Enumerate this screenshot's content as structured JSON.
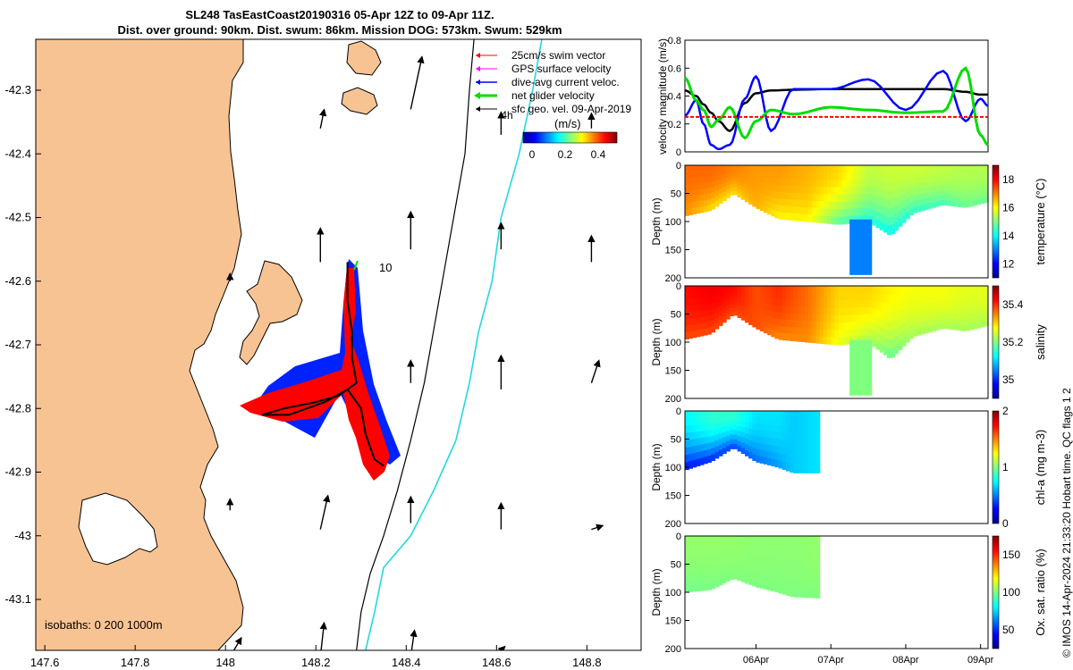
{
  "title": {
    "line1": "SL248 TasEastCoast20190316 05-Apr 12Z to 09-Apr 11Z.",
    "line2": "Dist. over ground: 90km. Dist. swum: 86km. Mission DOG: 573km. Swum: 529km"
  },
  "credit": "© IMOS 14-Apr-2024 21:33:20 Hobart time. QC flags 1  2",
  "colors": {
    "land": "#f8c393",
    "coast": "#000000",
    "swim": "#ff0000",
    "gps": "#ff00ff",
    "dive_avg": "#0000ff",
    "net_glider": "#00dd00",
    "geo_vel": "#000000",
    "isobath_200": "#000000",
    "isobath_1000": "#22d8e0"
  },
  "chart_data": [
    {
      "type": "scatter",
      "id": "map",
      "xlabel": "",
      "ylabel": "",
      "xlim": [
        147.58,
        148.92
      ],
      "ylim": [
        -43.18,
        -42.22
      ],
      "x_ticks": [
        "147.6",
        "147.8",
        "148",
        "148.2",
        "148.4",
        "148.6",
        "148.8"
      ],
      "x_tick_values": [
        147.6,
        147.8,
        148.0,
        148.2,
        148.4,
        148.6,
        148.8
      ],
      "y_ticks": [
        "-42.3",
        "-42.4",
        "-42.5",
        "-42.6",
        "-42.7",
        "-42.8",
        "-42.9",
        "-43",
        "-43.1"
      ],
      "y_tick_values": [
        -42.3,
        -42.4,
        -42.5,
        -42.6,
        -42.7,
        -42.8,
        -42.9,
        -43.0,
        -43.1
      ],
      "legend": {
        "position": "top-right",
        "entries": [
          "25cm/s swim vector",
          "GPS surface velocity",
          "dive-avg current veloc.",
          "net glider velocity",
          "sfc geo. vel. 09-Apr-2019"
        ]
      },
      "colorbar": {
        "label": "(m/s)",
        "ticks": [
          "0",
          "0.2",
          "0.4"
        ],
        "range": [
          0,
          0.5
        ]
      },
      "isobath_label": "isobaths: 0   200  1000m",
      "annotations": [
        {
          "text": "4h",
          "lon": 148.61,
          "lat": -42.345
        },
        {
          "text": "10",
          "lon": 148.34,
          "lat": -42.585
        }
      ],
      "glider_track": [
        [
          148.27,
          -42.57
        ],
        [
          148.27,
          -42.63
        ],
        [
          148.28,
          -42.68
        ],
        [
          148.28,
          -42.72
        ],
        [
          148.29,
          -42.76
        ],
        [
          148.25,
          -42.78
        ],
        [
          148.2,
          -42.79
        ],
        [
          148.13,
          -42.8
        ],
        [
          148.08,
          -42.81
        ],
        [
          148.14,
          -42.81
        ],
        [
          148.22,
          -42.79
        ],
        [
          148.27,
          -42.77
        ],
        [
          148.3,
          -42.8
        ],
        [
          148.31,
          -42.84
        ],
        [
          148.33,
          -42.88
        ],
        [
          148.35,
          -42.89
        ]
      ],
      "isobath_200": [
        [
          148.55,
          -42.22
        ],
        [
          148.54,
          -42.3
        ],
        [
          148.53,
          -42.4
        ],
        [
          148.5,
          -42.52
        ],
        [
          148.48,
          -42.6
        ],
        [
          148.46,
          -42.68
        ],
        [
          148.44,
          -42.76
        ],
        [
          148.41,
          -42.85
        ],
        [
          148.38,
          -42.93
        ],
        [
          148.35,
          -43.0
        ],
        [
          148.32,
          -43.06
        ],
        [
          148.3,
          -43.12
        ],
        [
          148.29,
          -43.18
        ]
      ],
      "isobath_1000": [
        [
          148.7,
          -42.22
        ],
        [
          148.68,
          -42.3
        ],
        [
          148.65,
          -42.4
        ],
        [
          148.61,
          -42.5
        ],
        [
          148.59,
          -42.6
        ],
        [
          148.56,
          -42.68
        ],
        [
          148.54,
          -42.76
        ],
        [
          148.51,
          -42.85
        ],
        [
          148.46,
          -42.93
        ],
        [
          148.41,
          -43.0
        ],
        [
          148.35,
          -43.05
        ],
        [
          148.33,
          -43.12
        ],
        [
          148.31,
          -43.18
        ]
      ],
      "geo_vectors": [
        {
          "lon": 148.01,
          "lat": -42.6,
          "u": 0.0,
          "v": 0.02
        },
        {
          "lon": 148.21,
          "lat": -42.36,
          "u": 0.01,
          "v": 0.05
        },
        {
          "lon": 148.41,
          "lat": -42.33,
          "u": 0.03,
          "v": 0.14
        },
        {
          "lon": 148.61,
          "lat": -42.37,
          "u": 0.0,
          "v": 0.06
        },
        {
          "lon": 148.81,
          "lat": -42.36,
          "u": 0.0,
          "v": 0.04
        },
        {
          "lon": 148.21,
          "lat": -42.57,
          "u": 0.0,
          "v": 0.09
        },
        {
          "lon": 148.41,
          "lat": -42.55,
          "u": 0.0,
          "v": 0.1
        },
        {
          "lon": 148.61,
          "lat": -42.55,
          "u": 0.0,
          "v": 0.07
        },
        {
          "lon": 148.81,
          "lat": -42.57,
          "u": 0.0,
          "v": 0.07
        },
        {
          "lon": 148.41,
          "lat": -42.76,
          "u": 0.0,
          "v": 0.06
        },
        {
          "lon": 148.61,
          "lat": -42.77,
          "u": 0.0,
          "v": 0.09
        },
        {
          "lon": 148.81,
          "lat": -42.76,
          "u": 0.02,
          "v": 0.06
        },
        {
          "lon": 148.01,
          "lat": -42.96,
          "u": 0.0,
          "v": 0.03
        },
        {
          "lon": 148.21,
          "lat": -42.99,
          "u": 0.02,
          "v": 0.09
        },
        {
          "lon": 148.41,
          "lat": -42.98,
          "u": 0.0,
          "v": 0.07
        },
        {
          "lon": 148.61,
          "lat": -42.99,
          "u": 0.0,
          "v": 0.07
        },
        {
          "lon": 148.81,
          "lat": -42.99,
          "u": 0.03,
          "v": 0.01
        },
        {
          "lon": 148.01,
          "lat": -43.19,
          "u": 0.03,
          "v": 0.05
        },
        {
          "lon": 148.21,
          "lat": -43.19,
          "u": 0.01,
          "v": 0.09
        },
        {
          "lon": 148.41,
          "lat": -43.19,
          "u": 0.01,
          "v": 0.07
        },
        {
          "lon": 148.61,
          "lat": -43.18,
          "u": 0.01,
          "v": 0.01
        }
      ]
    },
    {
      "type": "line",
      "id": "velocity",
      "ylabel": "velocity magnitude (m/s)",
      "xlabel": "",
      "ylim": [
        0,
        0.8
      ],
      "y_ticks": [
        "0",
        "0.2",
        "0.4",
        "0.6",
        "0.8"
      ],
      "y_tick_values": [
        0,
        0.2,
        0.4,
        0.6,
        0.8
      ],
      "x_tick_values": [
        0.5,
        1.5,
        2.5,
        3.5
      ],
      "xlim": [
        -0.45,
        3.6
      ],
      "x": [
        -0.45,
        -0.3,
        -0.2,
        -0.1,
        0.0,
        0.15,
        0.35,
        0.5,
        0.7,
        1.0,
        1.5,
        2.0,
        2.5,
        3.0,
        3.3,
        3.5,
        3.6
      ],
      "series": [
        {
          "name": "sfc geo. vel. 09-Apr-2019",
          "color": "#000000",
          "values": [
            0.44,
            0.4,
            0.34,
            0.28,
            0.22,
            0.15,
            0.35,
            0.42,
            0.44,
            0.445,
            0.45,
            0.45,
            0.45,
            0.45,
            0.43,
            0.41,
            0.41
          ]
        },
        {
          "name": "dive-avg current veloc.",
          "color": "#0000ff",
          "values": [
            0.26,
            0.37,
            0.2,
            0.05,
            0.02,
            0.05,
            0.38,
            0.54,
            0.15,
            0.45,
            0.45,
            0.52,
            0.3,
            0.58,
            0.22,
            0.38,
            0.33
          ]
        },
        {
          "name": "net glider velocity",
          "color": "#00dd00",
          "values": [
            0.53,
            0.37,
            0.3,
            0.18,
            0.23,
            0.32,
            0.1,
            0.22,
            0.3,
            0.27,
            0.32,
            0.3,
            0.28,
            0.29,
            0.6,
            0.12,
            0.05
          ]
        },
        {
          "name": "25cm/s swim vector",
          "color": "#ff0000",
          "values": [
            0.25,
            0.25,
            0.25,
            0.25,
            0.25,
            0.25,
            0.25,
            0.25,
            0.25,
            0.25,
            0.25,
            0.25,
            0.25,
            0.25,
            0.25,
            0.25,
            0.25
          ]
        }
      ]
    },
    {
      "type": "heatmap",
      "id": "temperature",
      "ylabel": "Depth (m)",
      "colorbar_label": "temperature (°C)",
      "colorbar_ticks": [
        "12",
        "14",
        "16",
        "18"
      ],
      "colorbar_range": [
        11,
        19
      ],
      "ylim": [
        200,
        0
      ],
      "y_ticks": [
        "0",
        "50",
        "100",
        "150",
        "200"
      ],
      "xlim": [
        -0.45,
        3.6
      ],
      "profiles_x": [
        -0.45,
        -0.1,
        0.2,
        0.5,
        0.8,
        1.2,
        1.6,
        2.0,
        2.3,
        2.6,
        3.0,
        3.3,
        3.6
      ],
      "bottom_depth": [
        90,
        80,
        50,
        75,
        95,
        100,
        105,
        100,
        125,
        85,
        70,
        75,
        65
      ],
      "surface_value": [
        17.2,
        17.2,
        17.0,
        16.8,
        16.8,
        16.6,
        16.3,
        15.5,
        15.6,
        15.6,
        15.5,
        15.4,
        15.4
      ],
      "deep_value": [
        16.8,
        16.2,
        16.2,
        16.6,
        16.0,
        16.0,
        14.6,
        14.2,
        14.0,
        14.3,
        14.5,
        14.8,
        14.8
      ],
      "deep_feature": {
        "x": [
          1.75,
          2.05
        ],
        "bottom": 195,
        "value": 13.0
      }
    },
    {
      "type": "heatmap",
      "id": "salinity",
      "ylabel": "Depth (m)",
      "colorbar_label": "salinity",
      "colorbar_ticks": [
        "35",
        "35.2",
        "35.4"
      ],
      "colorbar_range": [
        34.9,
        35.5
      ],
      "ylim": [
        200,
        0
      ],
      "y_ticks": [
        "0",
        "50",
        "100",
        "150",
        "200"
      ],
      "xlim": [
        -0.45,
        3.6
      ],
      "profiles_x": [
        -0.45,
        -0.1,
        0.2,
        0.5,
        0.8,
        1.2,
        1.6,
        2.0,
        2.3,
        2.6,
        3.0,
        3.3,
        3.6
      ],
      "bottom_depth": [
        95,
        85,
        50,
        75,
        95,
        100,
        105,
        100,
        130,
        90,
        75,
        80,
        70
      ],
      "surface_value": [
        35.42,
        35.43,
        35.42,
        35.38,
        35.4,
        35.36,
        35.3,
        35.3,
        35.28,
        35.27,
        35.27,
        35.26,
        35.26
      ],
      "deep_value": [
        35.38,
        35.38,
        35.38,
        35.38,
        35.34,
        35.34,
        35.26,
        35.22,
        35.18,
        35.22,
        35.22,
        35.22,
        35.22
      ],
      "deep_feature": {
        "x": [
          1.75,
          2.05
        ],
        "bottom": 195,
        "value": 35.2
      }
    },
    {
      "type": "heatmap",
      "id": "chla",
      "ylabel": "Depth (m)",
      "colorbar_label": "chl-a (mg m-3)",
      "colorbar_ticks": [
        "0",
        "1",
        "2"
      ],
      "colorbar_range": [
        0,
        2
      ],
      "ylim": [
        200,
        0
      ],
      "y_ticks": [
        "0",
        "50",
        "100",
        "150",
        "200"
      ],
      "xlim": [
        -0.45,
        3.6
      ],
      "profiles_x": [
        -0.45,
        -0.1,
        0.2,
        0.5,
        0.8,
        1.0,
        1.35
      ],
      "bottom_depth": [
        105,
        90,
        65,
        90,
        100,
        110,
        110
      ],
      "surface_value": [
        0.75,
        0.85,
        0.85,
        0.7,
        0.7,
        0.65,
        0.7
      ],
      "deep_value": [
        0.25,
        0.3,
        0.35,
        0.45,
        0.55,
        0.65,
        0.7
      ]
    },
    {
      "type": "heatmap",
      "id": "oxygen",
      "ylabel": "Depth (m)",
      "colorbar_label": "Ox. sat. ratio (%)",
      "colorbar_ticks": [
        "50",
        "100",
        "150"
      ],
      "colorbar_range": [
        25,
        175
      ],
      "ylim": [
        200,
        0
      ],
      "y_ticks": [
        "0",
        "50",
        "100",
        "150",
        "200"
      ],
      "xlim": [
        -0.45,
        3.6
      ],
      "x_ticks": [
        "06Apr",
        "07Apr",
        "08Apr",
        "09Apr"
      ],
      "x_tick_values": [
        0.5,
        1.5,
        2.5,
        3.5
      ],
      "profiles_x": [
        -0.45,
        -0.1,
        0.2,
        0.5,
        0.8,
        1.0,
        1.35
      ],
      "bottom_depth": [
        100,
        95,
        75,
        90,
        100,
        108,
        110
      ],
      "surface_value": [
        103,
        103,
        103,
        102,
        102,
        102,
        103
      ],
      "deep_value": [
        98,
        99,
        100,
        100,
        100,
        100,
        100
      ]
    }
  ]
}
